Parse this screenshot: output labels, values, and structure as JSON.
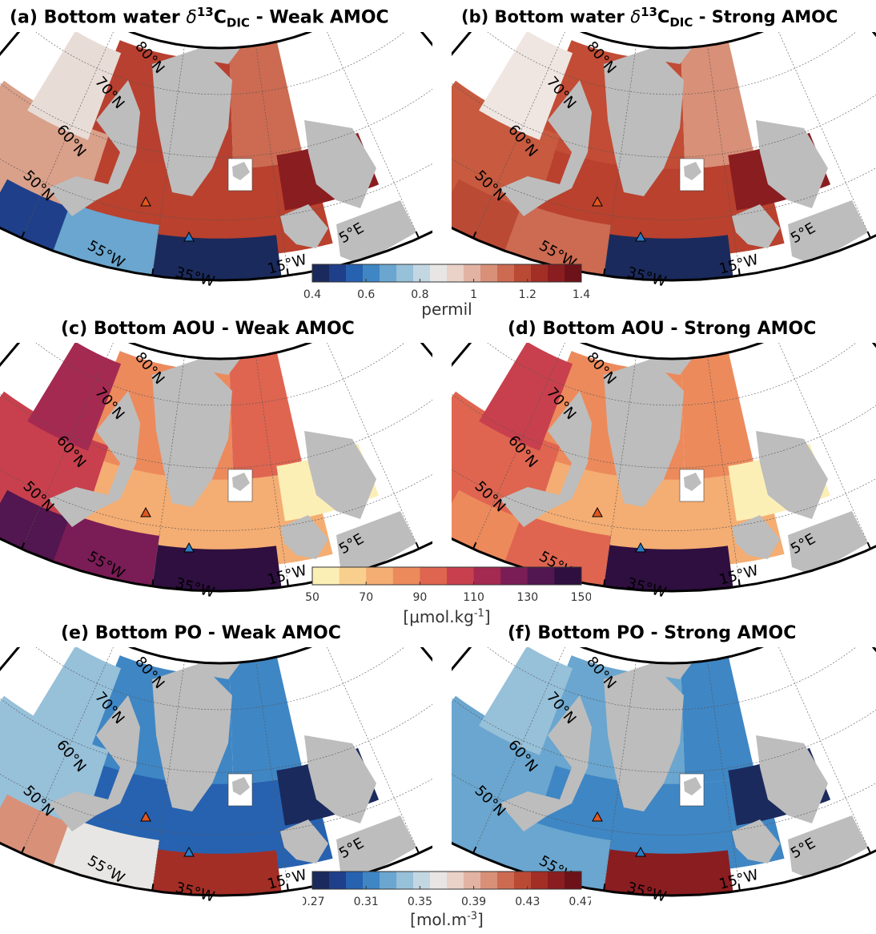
{
  "panels": [
    {
      "id": "a",
      "label": "(a)",
      "title_pre": "Bottom water ",
      "delta": "δ",
      "sup": "13",
      "base": "C",
      "sub": "DIC",
      "title_post": " - Weak AMOC",
      "scheme": "d13c_weak"
    },
    {
      "id": "b",
      "label": "(b)",
      "title_pre": "Bottom water ",
      "delta": "δ",
      "sup": "13",
      "base": "C",
      "sub": "DIC",
      "title_post": " - Strong AMOC",
      "scheme": "d13c_strong"
    },
    {
      "id": "c",
      "label": "(c)",
      "title_pre": "Bottom AOU - Weak AMOC",
      "scheme": "aou_weak"
    },
    {
      "id": "d",
      "label": "(d)",
      "title_pre": "Bottom AOU - Strong AMOC",
      "scheme": "aou_strong"
    },
    {
      "id": "e",
      "label": "(e)",
      "title_pre": "Bottom PO - Weak AMOC",
      "scheme": "po_weak"
    },
    {
      "id": "f",
      "label": "(f)",
      "title_pre": "Bottom PO - Strong AMOC",
      "scheme": "po_strong"
    }
  ],
  "lat_labels": [
    "80°N",
    "70°N",
    "60°N",
    "50°N"
  ],
  "lon_labels": [
    "55°W",
    "35°W",
    "15°W",
    "5°E"
  ],
  "colorbars": [
    {
      "id": "d13c",
      "ticks": [
        "0.4",
        "0.6",
        "0.8",
        "1",
        "1.2",
        "1.4"
      ],
      "label": "permil",
      "colors": [
        "#1b2a5c",
        "#1f3f8a",
        "#2762b0",
        "#3f86c4",
        "#6aa6cf",
        "#97c0d9",
        "#c3d7e3",
        "#e7e6e4",
        "#ead2c9",
        "#e2b3a3",
        "#d89078",
        "#cc6b52",
        "#bb4a35",
        "#a32e26",
        "#8a1d20",
        "#6d1218"
      ]
    },
    {
      "id": "aou",
      "ticks": [
        "50",
        "70",
        "90",
        "110",
        "130",
        "150"
      ],
      "label": "[μmol.kg-1]",
      "colors": [
        "#fcefb6",
        "#f9cf8e",
        "#f4ad72",
        "#ec8a5c",
        "#df6550",
        "#c8404d",
        "#a42a52",
        "#7a1c56",
        "#521650",
        "#2e0f3f"
      ]
    },
    {
      "id": "po",
      "ticks": [
        "0.27",
        "0.31",
        "0.35",
        "0.39",
        "0.43",
        "0.47"
      ],
      "label": "[mol.m-3]",
      "colors": [
        "#1b2a5c",
        "#1f3f8a",
        "#2762b0",
        "#3f86c4",
        "#6aa6cf",
        "#97c0d9",
        "#c3d7e3",
        "#e7e6e4",
        "#ead2c9",
        "#e2b3a3",
        "#d89078",
        "#cc6b52",
        "#bb4a35",
        "#a32e26",
        "#8a1d20",
        "#6d1218"
      ]
    }
  ],
  "colors": {
    "land": "#bdbdbd",
    "frame": "#000000",
    "triangle_orange": "#e0571f",
    "triangle_blue": "#2b7cc4"
  },
  "schemes": {
    "d13c_weak": {
      "sw": "#d9a08a",
      "se": "#b9412e",
      "n": "#b84030",
      "nw": "#e8dcd6",
      "ne": "#8a1d20",
      "blob1": "#1f3f8a",
      "blob2": "#6aa6cf",
      "blob3": "#1b2a5c",
      "accent": "#cc6b52"
    },
    "d13c_strong": {
      "sw": "#c75a3f",
      "se": "#b9412e",
      "n": "#c24c35",
      "nw": "#efe6e2",
      "ne": "#8a1d20",
      "blob1": "#bb4a35",
      "blob2": "#cc6b52",
      "blob3": "#1b2a5c",
      "accent": "#d89078"
    },
    "aou_weak": {
      "sw": "#c8404d",
      "se": "#f4ad72",
      "n": "#ec8a5c",
      "nw": "#a42a52",
      "ne": "#fcefb6",
      "blob1": "#521650",
      "blob2": "#7a1c56",
      "blob3": "#2e0f3f",
      "accent": "#df6550"
    },
    "aou_strong": {
      "sw": "#df6550",
      "se": "#f4ad72",
      "n": "#ec8a5c",
      "nw": "#c8404d",
      "ne": "#fcefb6",
      "blob1": "#ec8a5c",
      "blob2": "#df6550",
      "blob3": "#2e0f3f",
      "accent": "#ec8a5c"
    },
    "po_weak": {
      "sw": "#97c0d9",
      "se": "#2762b0",
      "n": "#3f86c4",
      "nw": "#97c0d9",
      "ne": "#1b2a5c",
      "blob1": "#d89078",
      "blob2": "#e7e6e4",
      "blob3": "#a32e26",
      "accent": "#3f86c4"
    },
    "po_strong": {
      "sw": "#6aa6cf",
      "se": "#3f86c4",
      "n": "#6aa6cf",
      "nw": "#97c0d9",
      "ne": "#1b2a5c",
      "blob1": "#6aa6cf",
      "blob2": "#6aa6cf",
      "blob3": "#8a1d20",
      "accent": "#3f86c4"
    }
  }
}
